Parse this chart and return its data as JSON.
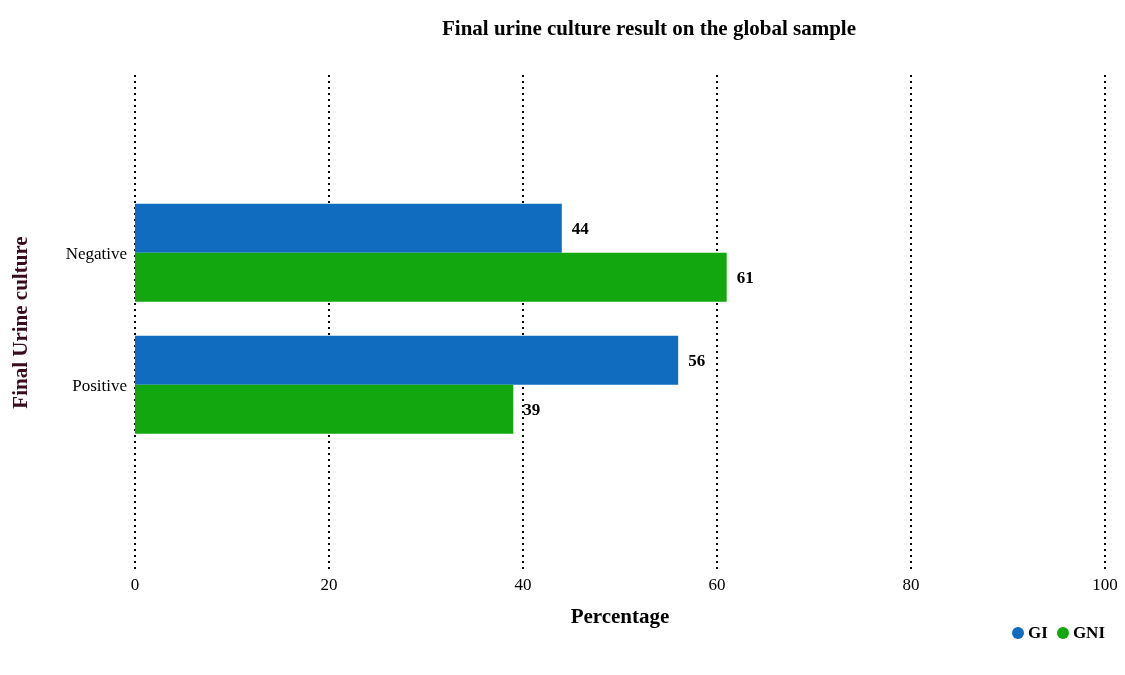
{
  "chart_data": {
    "type": "bar",
    "orientation": "horizontal",
    "title": "Final urine culture result on the global sample",
    "xlabel": "Percentage",
    "ylabel": "Final Urine culture",
    "categories": [
      "Negative",
      "Positive"
    ],
    "series": [
      {
        "name": "GI",
        "color": "#0f6cbf",
        "values": [
          44,
          56
        ]
      },
      {
        "name": "GNI",
        "color": "#12a60f",
        "values": [
          61,
          39
        ]
      }
    ],
    "xlim": [
      0,
      100
    ],
    "xticks": [
      0,
      20,
      40,
      60,
      80,
      100
    ],
    "grid": "x",
    "legend": "bottom right",
    "data_labels": true
  }
}
